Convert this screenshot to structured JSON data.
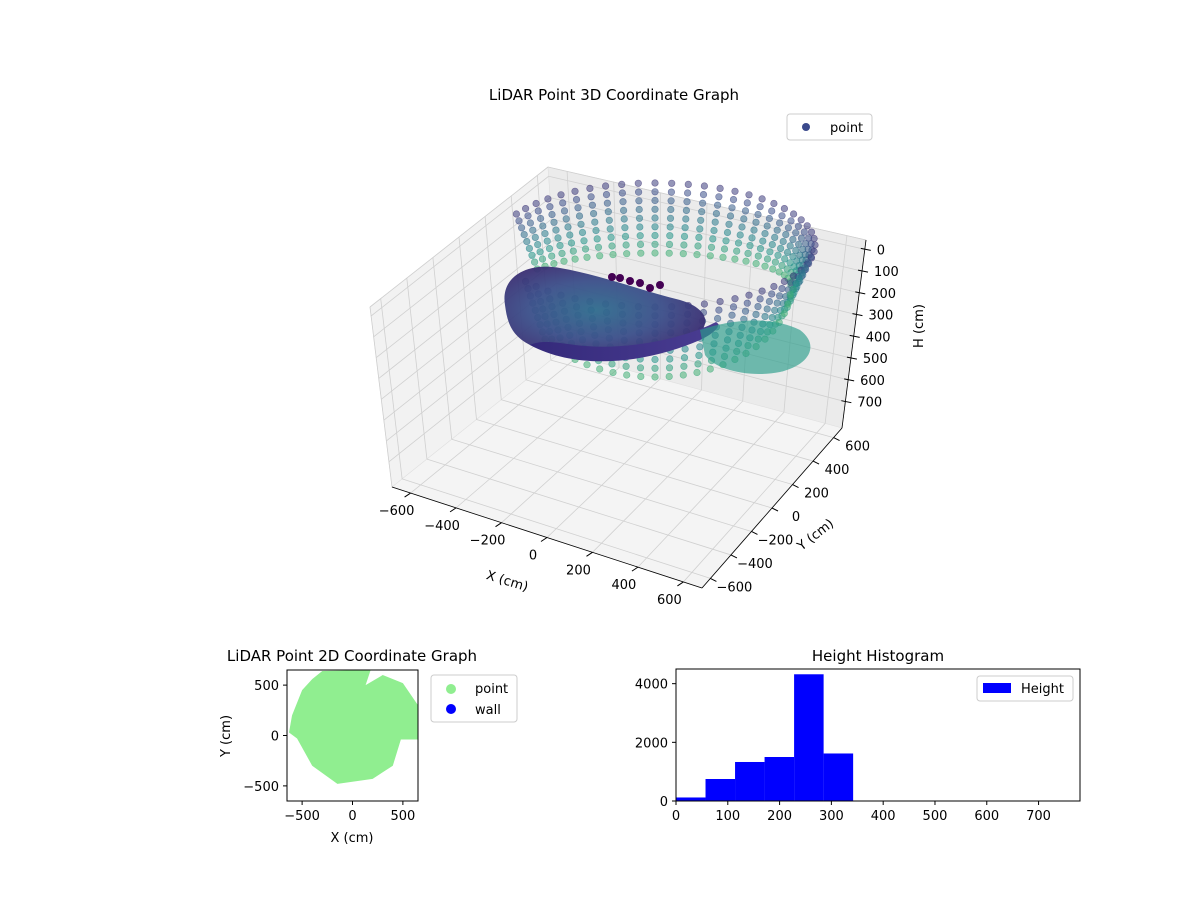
{
  "chart_data": [
    {
      "type": "scatter",
      "projection": "3d",
      "title": "LiDAR Point 3D Coordinate Graph",
      "xlabel": "X (cm)",
      "ylabel": "Y (cm)",
      "zlabel": "H (cm)",
      "xlim": [
        -650,
        650
      ],
      "ylim": [
        -650,
        650
      ],
      "zlim": [
        0,
        750
      ],
      "z_inverted": true,
      "xticks": [
        "−600",
        "−400",
        "−200",
        "0",
        "200",
        "400",
        "600"
      ],
      "yticks": [
        "−600",
        "−400",
        "−200",
        "0",
        "200",
        "400",
        "600"
      ],
      "zticks": [
        "0",
        "100",
        "200",
        "300",
        "400",
        "500",
        "600",
        "700"
      ],
      "legend": {
        "label": "point",
        "position": "top-right",
        "color": "#3b4a8c"
      },
      "colormap": "viridis",
      "grid": true
    },
    {
      "type": "scatter",
      "title": "LiDAR Point 2D Coordinate Graph",
      "xlabel": "X (cm)",
      "ylabel": "Y (cm)",
      "xlim": [
        -650,
        650
      ],
      "ylim": [
        -650,
        650
      ],
      "xticks": [
        "−500",
        "0",
        "500"
      ],
      "yticks": [
        "−500",
        "0",
        "500"
      ],
      "series": [
        {
          "name": "point",
          "color": "#90ee90"
        },
        {
          "name": "wall",
          "color": "#0000ff"
        }
      ],
      "legend_position": "outside-right"
    },
    {
      "type": "bar",
      "title": "Height Histogram",
      "xlim": [
        0,
        780
      ],
      "ylim": [
        0,
        4500
      ],
      "xticks": [
        "0",
        "100",
        "200",
        "300",
        "400",
        "500",
        "600",
        "700"
      ],
      "yticks": [
        "0",
        "2000",
        "4000"
      ],
      "bin_edges": [
        0,
        57,
        114,
        171,
        228,
        285,
        342
      ],
      "values": [
        120,
        750,
        1330,
        1500,
        4320,
        1620
      ],
      "series": [
        {
          "name": "Height",
          "color": "#0000ff"
        }
      ],
      "legend_position": "top-right"
    }
  ]
}
